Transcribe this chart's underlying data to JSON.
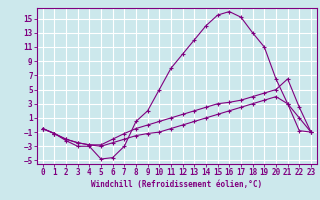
{
  "xlabel": "Windchill (Refroidissement éolien,°C)",
  "background_color": "#cce8ec",
  "grid_color": "#ffffff",
  "line_color": "#800080",
  "xlim": [
    -0.5,
    23.5
  ],
  "ylim": [
    -5.5,
    16.5
  ],
  "xticks": [
    0,
    1,
    2,
    3,
    4,
    5,
    6,
    7,
    8,
    9,
    10,
    11,
    12,
    13,
    14,
    15,
    16,
    17,
    18,
    19,
    20,
    21,
    22,
    23
  ],
  "yticks": [
    -5,
    -3,
    -1,
    1,
    3,
    5,
    7,
    9,
    11,
    13,
    15
  ],
  "line1_x": [
    0,
    1,
    2,
    3,
    4,
    5,
    6,
    7,
    8,
    9,
    10,
    11,
    12,
    13,
    14,
    15,
    16,
    17,
    18,
    19,
    20,
    21,
    22,
    23
  ],
  "line1_y": [
    -0.5,
    -1.2,
    -2.2,
    -3.0,
    -3.0,
    -4.8,
    -4.6,
    -3.0,
    0.5,
    2.0,
    5.0,
    8.0,
    10.0,
    12.0,
    14.0,
    15.5,
    16.0,
    15.2,
    13.0,
    11.0,
    6.5,
    3.0,
    -0.8,
    -1.0
  ],
  "line2_x": [
    0,
    1,
    2,
    3,
    4,
    5,
    6,
    7,
    8,
    9,
    10,
    11,
    12,
    13,
    14,
    15,
    16,
    17,
    18,
    19,
    20,
    21,
    22,
    23
  ],
  "line2_y": [
    -0.5,
    -1.2,
    -2.0,
    -2.5,
    -2.8,
    -2.8,
    -2.0,
    -1.2,
    -0.5,
    0.0,
    0.5,
    1.0,
    1.5,
    2.0,
    2.5,
    3.0,
    3.2,
    3.5,
    4.0,
    4.5,
    5.0,
    6.5,
    2.5,
    -1.0
  ],
  "line3_x": [
    0,
    1,
    2,
    3,
    4,
    5,
    6,
    7,
    8,
    9,
    10,
    11,
    12,
    13,
    14,
    15,
    16,
    17,
    18,
    19,
    20,
    21,
    22,
    23
  ],
  "line3_y": [
    -0.5,
    -1.2,
    -2.0,
    -2.5,
    -2.8,
    -3.0,
    -2.5,
    -2.0,
    -1.5,
    -1.2,
    -1.0,
    -0.5,
    0.0,
    0.5,
    1.0,
    1.5,
    2.0,
    2.5,
    3.0,
    3.5,
    4.0,
    3.0,
    1.0,
    -1.0
  ],
  "tick_fontsize": 5.5,
  "xlabel_fontsize": 5.5
}
